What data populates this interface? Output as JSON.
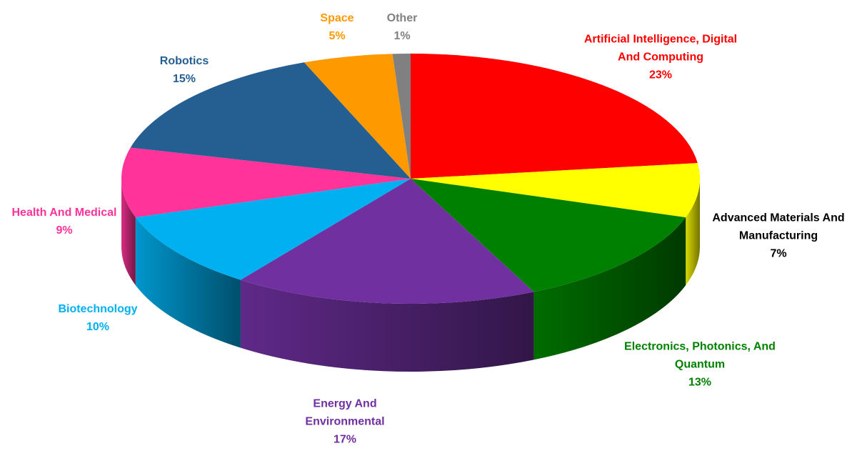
{
  "chart_data": {
    "type": "pie3d",
    "categories": [
      "Artificial Intelligence, Digital And Computing",
      "Advanced Materials And Manufacturing",
      "Electronics, Photonics, And Quantum",
      "Energy And Environmental",
      "Biotechnology",
      "Health And Medical",
      "Robotics",
      "Space",
      "Other"
    ],
    "values": [
      23,
      7,
      13,
      17,
      10,
      9,
      15,
      5,
      1
    ],
    "value_labels": [
      "23%",
      "7%",
      "13%",
      "17%",
      "10%",
      "9%",
      "15%",
      "5%",
      "1%"
    ],
    "colors": [
      "#ff0000",
      "#ffff00",
      "#008000",
      "#7030a0",
      "#00b0f0",
      "#ff3399",
      "#255e91",
      "#ff9900",
      "#808080"
    ],
    "label_colors": [
      "#ff0000",
      "#000000",
      "#008000",
      "#7030a0",
      "#00b0f0",
      "#ff3399",
      "#255e91",
      "#ff9900",
      "#808080"
    ]
  }
}
